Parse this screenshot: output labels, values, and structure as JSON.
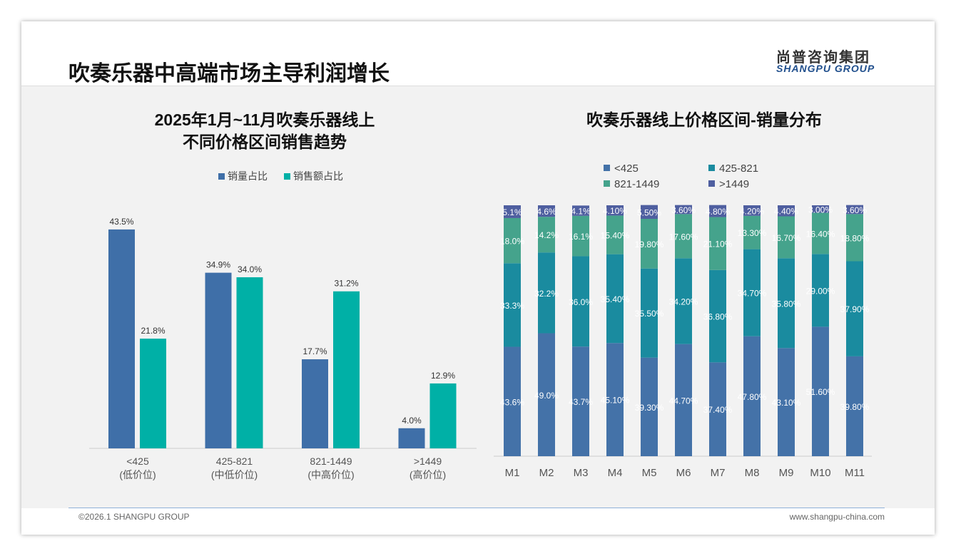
{
  "header": {
    "title": "吹奏乐器中高端市场主导利润增长",
    "logo_cn": "尚普咨询集团",
    "logo_en": "SHANGPU GROUP"
  },
  "footer": {
    "copyright": "©2026.1 SHANGPU GROUP",
    "website": "www.shangpu-china.com"
  },
  "chart_data": [
    {
      "type": "bar",
      "title": [
        "2025年1月~11月吹奏乐器线上",
        "不同价格区间销售趋势"
      ],
      "categories": [
        "<425",
        "425-821",
        "821-1449",
        ">1449"
      ],
      "sublabels": [
        "(低价位)",
        "(中低价位)",
        "(中高价位)",
        "(高价位)"
      ],
      "series": [
        {
          "name": "销量占比",
          "color": "#3f6fa8",
          "values": [
            43.5,
            34.9,
            17.7,
            4.0
          ]
        },
        {
          "name": "销售额占比",
          "color": "#00b0a6",
          "values": [
            21.8,
            34.0,
            31.2,
            12.9
          ]
        }
      ],
      "unit": "%",
      "legend": "top"
    },
    {
      "type": "bar",
      "stacked": true,
      "title": "吹奏乐器线上价格区间-销量分布",
      "categories": [
        "M1",
        "M2",
        "M3",
        "M4",
        "M5",
        "M6",
        "M7",
        "M8",
        "M9",
        "M10",
        "M11"
      ],
      "series": [
        {
          "name": "<425",
          "color": "#4472a8",
          "values": [
            43.6,
            49.0,
            43.7,
            45.1,
            39.3,
            44.7,
            37.4,
            47.8,
            43.1,
            51.6,
            39.8
          ],
          "labels": [
            "43.6%",
            "49.0%",
            "43.7%",
            "45.10%",
            "39.30%",
            "44.70%",
            "37.40%",
            "47.80%",
            "43.10%",
            "51.60%",
            "39.80%"
          ]
        },
        {
          "name": "425-821",
          "color": "#1a8b9f",
          "values": [
            33.3,
            32.2,
            36.0,
            35.4,
            35.5,
            34.2,
            36.8,
            34.7,
            35.8,
            29.0,
            37.9
          ],
          "labels": [
            "33.3%",
            "32.2%",
            "36.0%",
            "35.40%",
            "35.50%",
            "34.20%",
            "36.80%",
            "34.70%",
            "35.80%",
            "29.00%",
            "37.90%"
          ]
        },
        {
          "name": "821-1449",
          "color": "#45a38c",
          "values": [
            18.0,
            14.2,
            16.1,
            15.4,
            19.8,
            17.6,
            21.1,
            13.3,
            16.7,
            16.4,
            18.8
          ],
          "labels": [
            "18.0%",
            "14.2%",
            "16.1%",
            "15.40%",
            "19.80%",
            "17.60%",
            "21.10%",
            "13.30%",
            "16.70%",
            "16.40%",
            "18.80%"
          ]
        },
        {
          "name": ">1449",
          "color": "#4f5fa0",
          "values": [
            5.1,
            4.6,
            4.1,
            4.1,
            5.5,
            3.6,
            4.8,
            4.2,
            4.4,
            3.0,
            3.6
          ],
          "labels": [
            "5.1%",
            "4.6%",
            "4.1%",
            "4.10%",
            "5.50%",
            "3.60%",
            "4.80%",
            "4.20%",
            "4.40%",
            "3.00%",
            "3.60%"
          ]
        }
      ],
      "ylim": [
        0,
        100
      ],
      "legend": "top"
    }
  ]
}
